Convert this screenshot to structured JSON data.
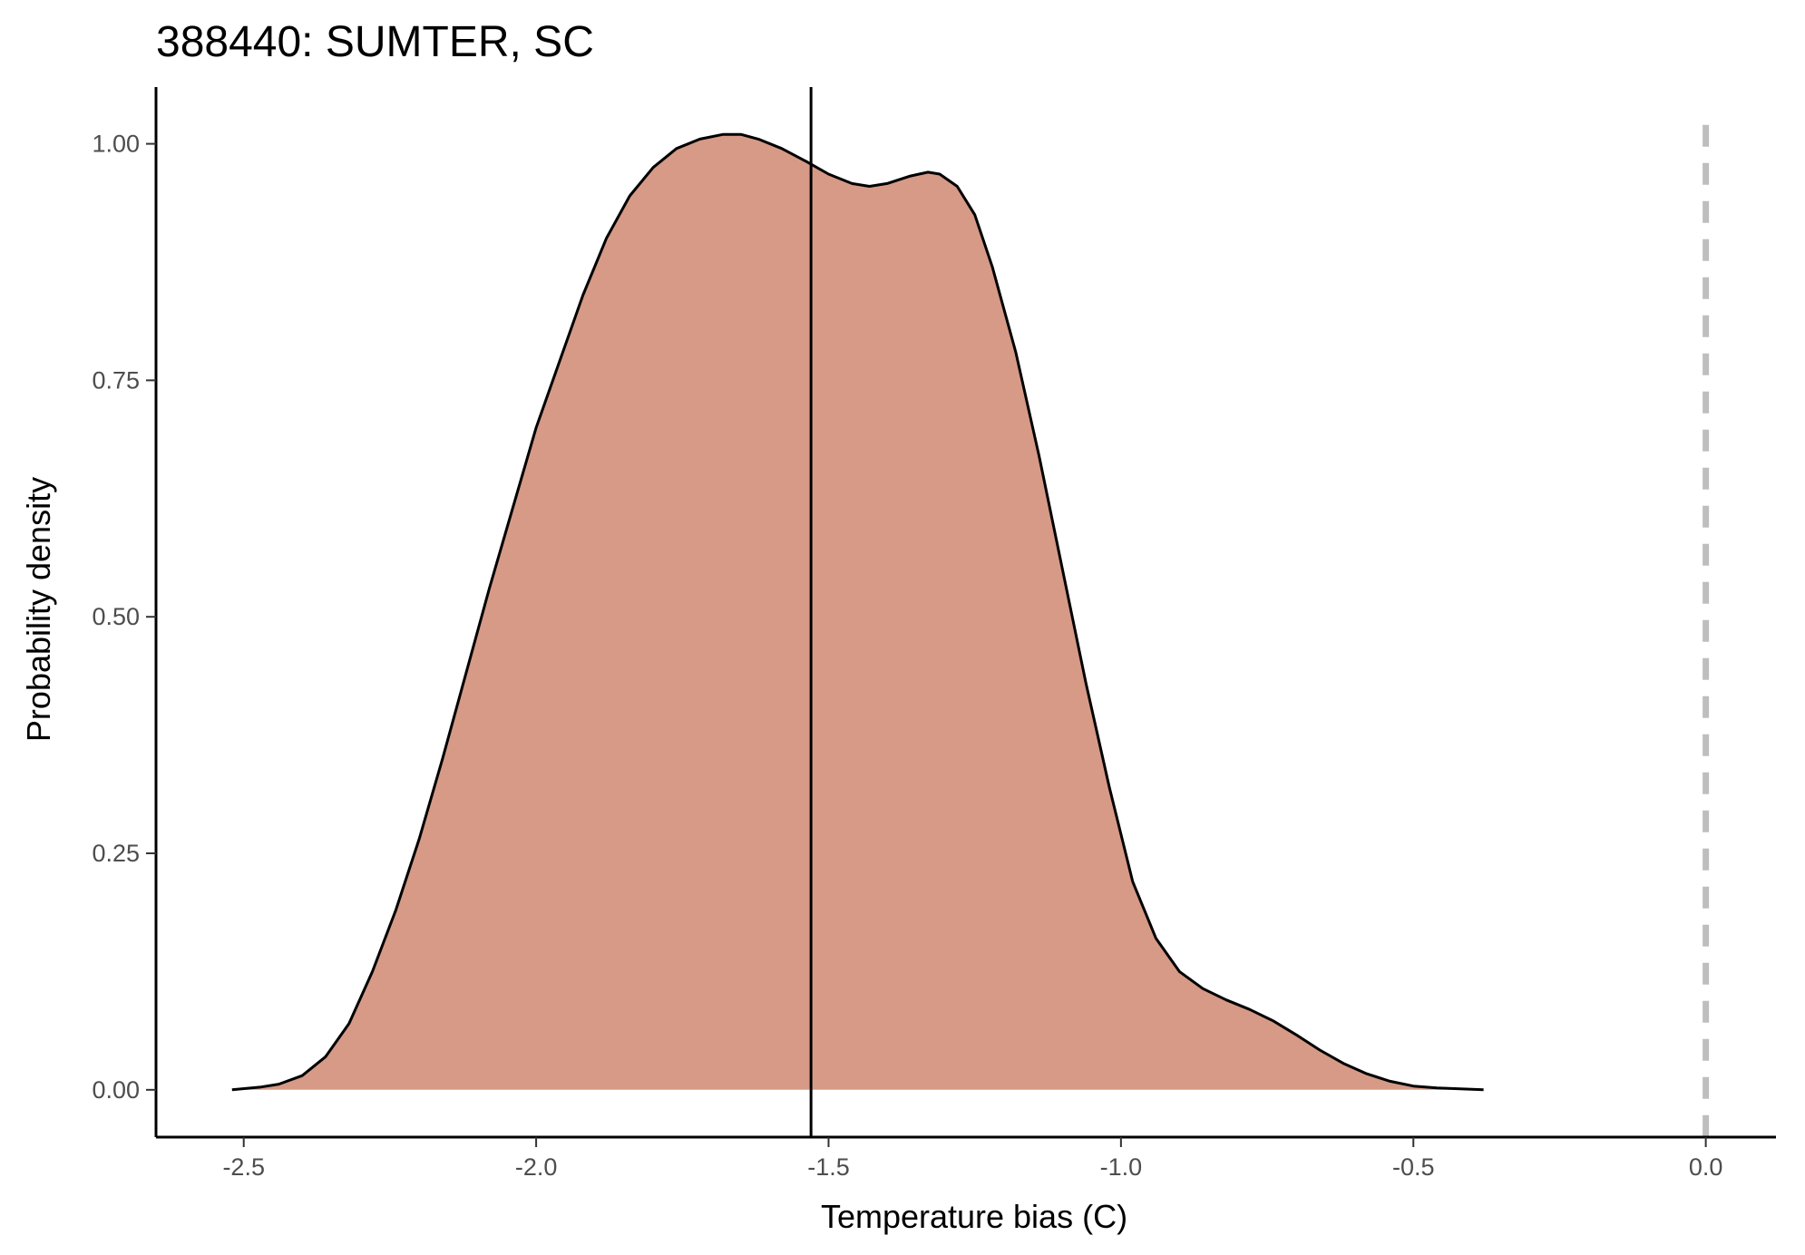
{
  "chart_data": {
    "type": "area",
    "title": "388440: SUMTER, SC",
    "xlabel": "Temperature bias (C)",
    "ylabel": "Probability density",
    "xlim": [
      -2.65,
      0.12
    ],
    "ylim": [
      -0.05,
      1.06
    ],
    "x_ticks": [
      -2.5,
      -2.0,
      -1.5,
      -1.0,
      -0.5,
      0.0
    ],
    "x_tick_labels": [
      "-2.5",
      "-2.0",
      "-1.5",
      "-1.0",
      "-0.5",
      "0.0"
    ],
    "y_ticks": [
      0.0,
      0.25,
      0.5,
      0.75,
      1.0
    ],
    "y_tick_labels": [
      "0.00",
      "0.25",
      "0.50",
      "0.75",
      "1.00"
    ],
    "grid": false,
    "series": [
      {
        "fill_color": "#d69a87",
        "line_color": "#000000",
        "x": [
          -2.52,
          -2.47,
          -2.44,
          -2.4,
          -2.36,
          -2.32,
          -2.28,
          -2.24,
          -2.2,
          -2.16,
          -2.12,
          -2.08,
          -2.04,
          -2.0,
          -1.96,
          -1.92,
          -1.88,
          -1.84,
          -1.8,
          -1.76,
          -1.72,
          -1.68,
          -1.65,
          -1.62,
          -1.58,
          -1.54,
          -1.5,
          -1.46,
          -1.43,
          -1.4,
          -1.36,
          -1.33,
          -1.31,
          -1.28,
          -1.25,
          -1.22,
          -1.18,
          -1.14,
          -1.1,
          -1.06,
          -1.02,
          -0.98,
          -0.94,
          -0.9,
          -0.86,
          -0.82,
          -0.78,
          -0.74,
          -0.7,
          -0.66,
          -0.62,
          -0.58,
          -0.54,
          -0.5,
          -0.46,
          -0.42,
          -0.38
        ],
        "y": [
          0.0,
          0.003,
          0.006,
          0.015,
          0.035,
          0.07,
          0.125,
          0.19,
          0.265,
          0.35,
          0.44,
          0.53,
          0.615,
          0.7,
          0.77,
          0.84,
          0.9,
          0.945,
          0.975,
          0.995,
          1.005,
          1.01,
          1.01,
          1.005,
          0.995,
          0.982,
          0.968,
          0.958,
          0.955,
          0.958,
          0.966,
          0.97,
          0.968,
          0.955,
          0.925,
          0.87,
          0.78,
          0.67,
          0.55,
          0.43,
          0.32,
          0.22,
          0.16,
          0.125,
          0.107,
          0.095,
          0.085,
          0.073,
          0.058,
          0.042,
          0.028,
          0.017,
          0.009,
          0.004,
          0.002,
          0.001,
          0.0
        ]
      }
    ],
    "vlines": [
      {
        "x": -1.53,
        "style": "solid",
        "color": "#000000"
      },
      {
        "x": 0.0,
        "style": "dashed",
        "color": "#bebebe"
      }
    ]
  }
}
